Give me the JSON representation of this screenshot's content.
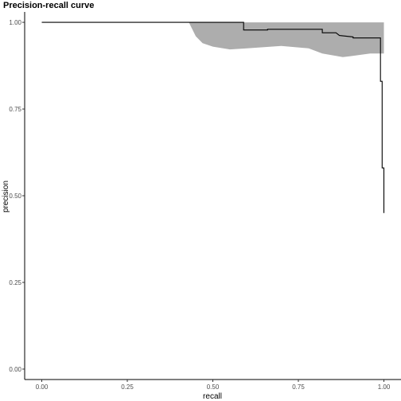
{
  "chart_data": {
    "type": "line",
    "title": "Precision-recall curve",
    "xlabel": "recall",
    "ylabel": "precision",
    "xlim": [
      -0.05,
      1.05
    ],
    "ylim": [
      -0.03,
      1.03
    ],
    "x_ticks": [
      0.0,
      0.25,
      0.5,
      0.75,
      1.0
    ],
    "x_tick_labels": [
      "0.00",
      "0.25",
      "0.50",
      "0.75",
      "1.00"
    ],
    "y_ticks": [
      0.0,
      0.25,
      0.5,
      0.75,
      1.0
    ],
    "y_tick_labels": [
      "0.00",
      "0.25",
      "0.50",
      "0.75",
      "1.00"
    ],
    "grid": false,
    "legend": "none",
    "colors": {
      "line": "#000000",
      "band": "#adadad",
      "axis": "#000000",
      "tick_label": "#4d4d4d"
    },
    "series": [
      {
        "points": [
          [
            0.0,
            1.0
          ],
          [
            0.59,
            1.0
          ],
          [
            0.59,
            0.978
          ],
          [
            0.66,
            0.978
          ],
          [
            0.66,
            0.98
          ],
          [
            0.82,
            0.98
          ],
          [
            0.82,
            0.97
          ],
          [
            0.86,
            0.97
          ],
          [
            0.87,
            0.962
          ],
          [
            0.91,
            0.958
          ],
          [
            0.91,
            0.955
          ],
          [
            0.99,
            0.955
          ],
          [
            0.99,
            0.83
          ],
          [
            0.995,
            0.83
          ],
          [
            0.995,
            0.58
          ],
          [
            1.0,
            0.58
          ],
          [
            1.0,
            0.45
          ]
        ]
      }
    ],
    "band": {
      "upper": [
        [
          0.43,
          1.0
        ],
        [
          1.0,
          1.0
        ]
      ],
      "lower": [
        [
          1.0,
          0.91
        ],
        [
          0.96,
          0.91
        ],
        [
          0.9,
          0.902
        ],
        [
          0.88,
          0.9
        ],
        [
          0.82,
          0.91
        ],
        [
          0.78,
          0.925
        ],
        [
          0.7,
          0.932
        ],
        [
          0.6,
          0.925
        ],
        [
          0.55,
          0.922
        ],
        [
          0.5,
          0.93
        ],
        [
          0.47,
          0.94
        ],
        [
          0.45,
          0.96
        ],
        [
          0.44,
          0.98
        ],
        [
          0.43,
          1.0
        ]
      ]
    }
  }
}
